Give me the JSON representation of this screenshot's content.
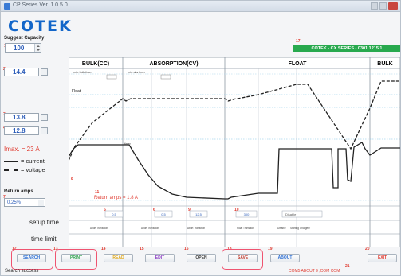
{
  "window": {
    "title": "CP Series Ver. 1.0.5.0"
  },
  "logo": "COTEK",
  "model_badge": "COTEK - CX SERIES - 0301.1215.1",
  "left_panel": {
    "capacity_label": "Suggest Capacity",
    "capacity_value": "100",
    "v1": "14.4",
    "v2": "13.8",
    "v3": "12.8",
    "imax_text": "Imax. = 23 A",
    "legend_current": "= current",
    "legend_voltage": "= voltage",
    "return_title": "Return amps",
    "return_value": "0.25%",
    "setup_time": "setup time",
    "time_limit": "time limit"
  },
  "diagram": {
    "stages": [
      "BULK(CC)",
      "ABSORPTION(CV)",
      "FLOAT",
      "BULK"
    ],
    "min_bulk": "min. bulk timer",
    "min_abs": "min. abs timer",
    "float_label": "Float",
    "return_amps_text": "Return amps = 1.8 A",
    "timer_label": "timer",
    "setup_values": [
      "0.5",
      "0.5",
      "12.5",
      "300",
      "Disable"
    ],
    "time_limits": [
      "Abort Transition",
      "Abort Transition",
      "Abort Transition",
      "Float Transition",
      "Disable",
      "Starting Charger?"
    ]
  },
  "buttons": {
    "search": "SEARCH",
    "print": "PRINT",
    "read": "READ",
    "edit": "EDIT",
    "open": "OPEN",
    "save": "SAVE",
    "about": "ABOUT",
    "exit": "EXIT"
  },
  "status": {
    "left": "Search success",
    "right": "COM5 ABOUT 9 ,COM COM"
  },
  "colors": {
    "accent_red": "#e03a2f",
    "brand_blue": "#1366c9",
    "model_green": "#28a94e",
    "highlight_ring": "#ef5470"
  }
}
